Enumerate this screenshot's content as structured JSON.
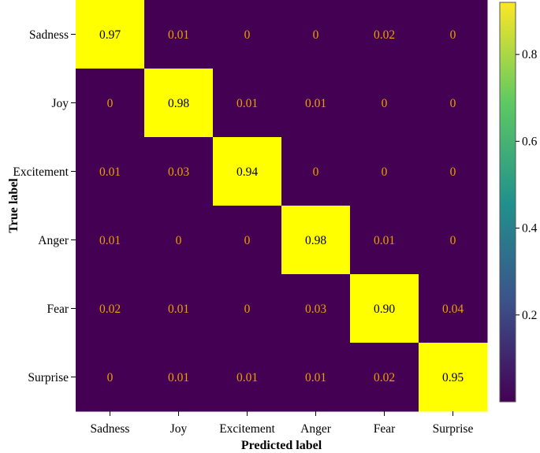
{
  "chart_data": {
    "type": "heatmap",
    "xlabel": "Predicted label",
    "ylabel": "True label",
    "categories": [
      "Sadness",
      "Joy",
      "Excitement",
      "Anger",
      "Fear",
      "Surprise"
    ],
    "rows": [
      "Sadness",
      "Joy",
      "Excitement",
      "Anger",
      "Fear",
      "Surprise"
    ],
    "values": [
      [
        0.97,
        0.01,
        0,
        0,
        0.02,
        0
      ],
      [
        0,
        0.98,
        0.01,
        0.01,
        0,
        0
      ],
      [
        0.01,
        0.03,
        0.94,
        0,
        0,
        0
      ],
      [
        0.01,
        0,
        0,
        0.98,
        0.01,
        0
      ],
      [
        0.02,
        0.01,
        0,
        0.03,
        0.9,
        0.04
      ],
      [
        0,
        0.01,
        0.01,
        0.01,
        0.02,
        0.95
      ]
    ],
    "value_labels": [
      [
        "0.97",
        "0.01",
        "0",
        "0",
        "0.02",
        "0"
      ],
      [
        "0",
        "0.98",
        "0.01",
        "0.01",
        "0",
        "0"
      ],
      [
        "0.01",
        "0.03",
        "0.94",
        "0",
        "0",
        "0"
      ],
      [
        "0.01",
        "0",
        "0",
        "0.98",
        "0.01",
        "0"
      ],
      [
        "0.02",
        "0.01",
        "0",
        "0.03",
        "0.90",
        "0.04"
      ],
      [
        "0",
        "0.01",
        "0.01",
        "0.01",
        "0.02",
        "0.95"
      ]
    ],
    "colormap": "viridis",
    "colorbar": {
      "range": [
        0,
        0.92
      ],
      "ticks": [
        0.2,
        0.4,
        0.6,
        0.8
      ],
      "tick_labels": [
        "0.2",
        "0.4",
        "0.6",
        "0.8"
      ]
    },
    "colors": {
      "low": "#440154",
      "high": "#fde725",
      "diagonal_cell": "#ffff00",
      "low_text": "#e8a000",
      "high_text": "#000000"
    },
    "grid": false
  }
}
